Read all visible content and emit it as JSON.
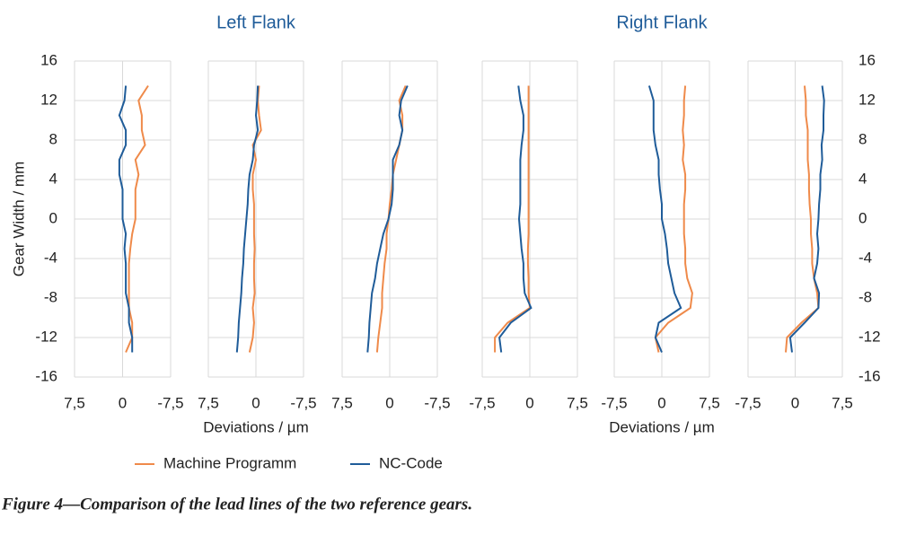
{
  "chart_data": [
    {
      "type": "line",
      "ylabel": "Gear Width / mm",
      "y": [
        -13.5,
        -12,
        -10.5,
        -9,
        -7.5,
        -6,
        -4.5,
        -3,
        -1.5,
        0,
        1.5,
        3,
        4.5,
        6,
        7.5,
        9,
        10.5,
        12,
        13.5
      ],
      "series": [
        {
          "name": "Machine Programm",
          "color": "#ef8a4a",
          "values": [
            -0.5,
            -1.5,
            -1.5,
            -1,
            -1,
            -1,
            -1,
            -1.2,
            -1.5,
            -2,
            -2,
            -2,
            -2.5,
            -2,
            -3.5,
            -3,
            -3,
            -2.5,
            -4
          ]
        },
        {
          "name": "NC-Code",
          "color": "#1f5c99",
          "values": [
            -1.5,
            -1.5,
            -1,
            -1,
            -0.5,
            -0.5,
            -0.5,
            -0.3,
            -0.5,
            0,
            0,
            0,
            0.5,
            0.5,
            -0.5,
            -0.5,
            0.5,
            -0.3,
            -0.5
          ]
        }
      ],
      "xlim": [
        7.5,
        -7.5
      ],
      "xticks": [
        {
          "value": 7.5,
          "label": "7,5"
        },
        0,
        {
          "value": -7.5,
          "label": "-7,5"
        }
      ],
      "ylim": [
        -16,
        16
      ],
      "yticks": [
        -16,
        -12,
        -8,
        -4,
        0,
        4,
        8,
        12,
        16
      ],
      "ytick_side": "left",
      "grid": true
    },
    {
      "type": "line",
      "title": "Left Flank",
      "xlabel": "Deviations / µm",
      "y": [
        -13.5,
        -12,
        -10.5,
        -9,
        -7.5,
        -6,
        -4.5,
        -3,
        -1.5,
        0,
        1.5,
        3,
        4.5,
        6,
        7.5,
        9,
        10.5,
        12,
        13.5
      ],
      "series": [
        {
          "name": "Machine Programm",
          "color": "#ef8a4a",
          "values": [
            1,
            0.5,
            0.3,
            0.5,
            0.2,
            0.3,
            0.3,
            0.2,
            0.3,
            0.3,
            0.3,
            0.5,
            0.5,
            0,
            0.5,
            -0.8,
            -0.5,
            -0.3,
            -0.5
          ]
        },
        {
          "name": "NC-Code",
          "color": "#1f5c99",
          "values": [
            3,
            2.8,
            2.7,
            2.5,
            2.3,
            2.2,
            2,
            1.9,
            1.7,
            1.5,
            1.3,
            1.2,
            1,
            0.5,
            0.3,
            -0.3,
            0,
            -0.2,
            -0.3
          ]
        }
      ],
      "xlim": [
        7.5,
        -7.5
      ],
      "xticks": [
        {
          "value": 7.5,
          "label": "7,5"
        },
        0,
        {
          "value": -7.5,
          "label": "-7,5"
        }
      ],
      "ylim": [
        -16,
        16
      ],
      "yticks": [
        -16,
        -12,
        -8,
        -4,
        0,
        4,
        8,
        12,
        16
      ],
      "grid": true
    },
    {
      "type": "line",
      "y": [
        -13.5,
        -12,
        -10.5,
        -9,
        -7.5,
        -6,
        -4.5,
        -3,
        -1.5,
        0,
        1.5,
        3,
        4.5,
        6,
        7.5,
        9,
        10.5,
        12,
        13.5
      ],
      "series": [
        {
          "name": "Machine Programm",
          "color": "#ef8a4a",
          "values": [
            2,
            1.8,
            1.5,
            1.2,
            1.2,
            1,
            0.8,
            0.5,
            0.5,
            0.2,
            0,
            -0.3,
            -0.5,
            -1,
            -1.5,
            -2,
            -2,
            -1.5,
            -2.5
          ]
        },
        {
          "name": "NC-Code",
          "color": "#1f5c99",
          "values": [
            3.5,
            3.3,
            3.2,
            3,
            2.8,
            2.3,
            2,
            1.5,
            1,
            0.2,
            -0.3,
            -0.5,
            -0.5,
            -0.5,
            -1.5,
            -2,
            -1.5,
            -1.8,
            -2.8
          ]
        }
      ],
      "xlim": [
        7.5,
        -7.5
      ],
      "xticks": [
        {
          "value": 7.5,
          "label": "7,5"
        },
        0,
        {
          "value": -7.5,
          "label": "-7,5"
        }
      ],
      "ylim": [
        -16,
        16
      ],
      "yticks": [
        -16,
        -12,
        -8,
        -4,
        0,
        4,
        8,
        12,
        16
      ],
      "grid": true
    },
    {
      "type": "line",
      "y": [
        -13.5,
        -12,
        -10.5,
        -9,
        -7.5,
        -6,
        -4.5,
        -3,
        -1.5,
        0,
        1.5,
        3,
        4.5,
        6,
        7.5,
        9,
        10.5,
        12,
        13.5
      ],
      "series": [
        {
          "name": "Machine Programm",
          "color": "#ef8a4a",
          "values": [
            -5.5,
            -5.5,
            -3.5,
            0,
            -0.2,
            -0.2,
            -0.3,
            -0.3,
            -0.2,
            -0.2,
            -0.2,
            -0.2,
            -0.2,
            -0.2,
            -0.2,
            -0.2,
            -0.2,
            -0.2,
            -0.2
          ]
        },
        {
          "name": "NC-Code",
          "color": "#1f5c99",
          "values": [
            -4.5,
            -4.8,
            -3,
            0.2,
            -0.8,
            -1,
            -1,
            -1.3,
            -1.5,
            -1.7,
            -1.5,
            -1.5,
            -1.5,
            -1.5,
            -1.3,
            -1,
            -1,
            -1.5,
            -1.8
          ]
        }
      ],
      "xlim": [
        -7.5,
        7.5
      ],
      "xticks": [
        {
          "value": -7.5,
          "label": "-7,5"
        },
        0,
        {
          "value": 7.5,
          "label": "7,5"
        }
      ],
      "ylim": [
        -16,
        16
      ],
      "yticks": [
        -16,
        -12,
        -8,
        -4,
        0,
        4,
        8,
        12,
        16
      ],
      "grid": true
    },
    {
      "type": "line",
      "title": "Right Flank",
      "xlabel": "Deviations / µm",
      "y": [
        -13.5,
        -12,
        -10.5,
        -9,
        -7.5,
        -6,
        -4.5,
        -3,
        -1.5,
        0,
        1.5,
        3,
        4.5,
        6,
        7.5,
        9,
        10.5,
        12,
        13.5
      ],
      "series": [
        {
          "name": "Machine Programm",
          "color": "#ef8a4a",
          "values": [
            -0.5,
            -1,
            1,
            4.5,
            4.8,
            4,
            3.7,
            3.7,
            3.5,
            3.5,
            3.5,
            3.7,
            3.7,
            3.3,
            3.5,
            3.3,
            3.5,
            3.5,
            3.7
          ]
        },
        {
          "name": "NC-Code",
          "color": "#1f5c99",
          "values": [
            0,
            -1,
            -0.5,
            3,
            2,
            1.5,
            1,
            0.8,
            0.5,
            0,
            0,
            -0.3,
            -0.5,
            -0.5,
            -1,
            -1.3,
            -1.3,
            -1.3,
            -2
          ]
        }
      ],
      "xlim": [
        -7.5,
        7.5
      ],
      "xticks": [
        {
          "value": -7.5,
          "label": "-7,5"
        },
        0,
        {
          "value": 7.5,
          "label": "7,5"
        }
      ],
      "ylim": [
        -16,
        16
      ],
      "yticks": [
        -16,
        -12,
        -8,
        -4,
        0,
        4,
        8,
        12,
        16
      ],
      "grid": true
    },
    {
      "type": "line",
      "y": [
        -13.5,
        -12,
        -10.5,
        -9,
        -7.5,
        -6,
        -4.5,
        -3,
        -1.5,
        0,
        1.5,
        3,
        4.5,
        6,
        7.5,
        9,
        10.5,
        12,
        13.5
      ],
      "series": [
        {
          "name": "Machine Programm",
          "color": "#ef8a4a",
          "values": [
            -1.5,
            -1.3,
            1,
            3.7,
            3.5,
            3,
            2.7,
            2.7,
            2.5,
            2.5,
            2.3,
            2.2,
            2.2,
            2,
            2,
            2,
            1.7,
            1.7,
            1.5
          ]
        },
        {
          "name": "NC-Code",
          "color": "#1f5c99",
          "values": [
            -0.5,
            -0.8,
            1.5,
            3.7,
            3.8,
            3,
            3.5,
            3.7,
            3.5,
            3.7,
            3.8,
            4,
            4,
            4.3,
            4.2,
            4.5,
            4.5,
            4.6,
            4.3
          ]
        }
      ],
      "xlim": [
        -7.5,
        7.5
      ],
      "xticks": [
        {
          "value": -7.5,
          "label": "-7,5"
        },
        0,
        {
          "value": 7.5,
          "label": "7,5"
        }
      ],
      "ylim": [
        -16,
        16
      ],
      "yticks": [
        -16,
        -12,
        -8,
        -4,
        0,
        4,
        8,
        12,
        16
      ],
      "ytick_side": "right",
      "grid": true
    }
  ],
  "caption": "Figure 4—Comparison of the lead lines of the two reference gears."
}
